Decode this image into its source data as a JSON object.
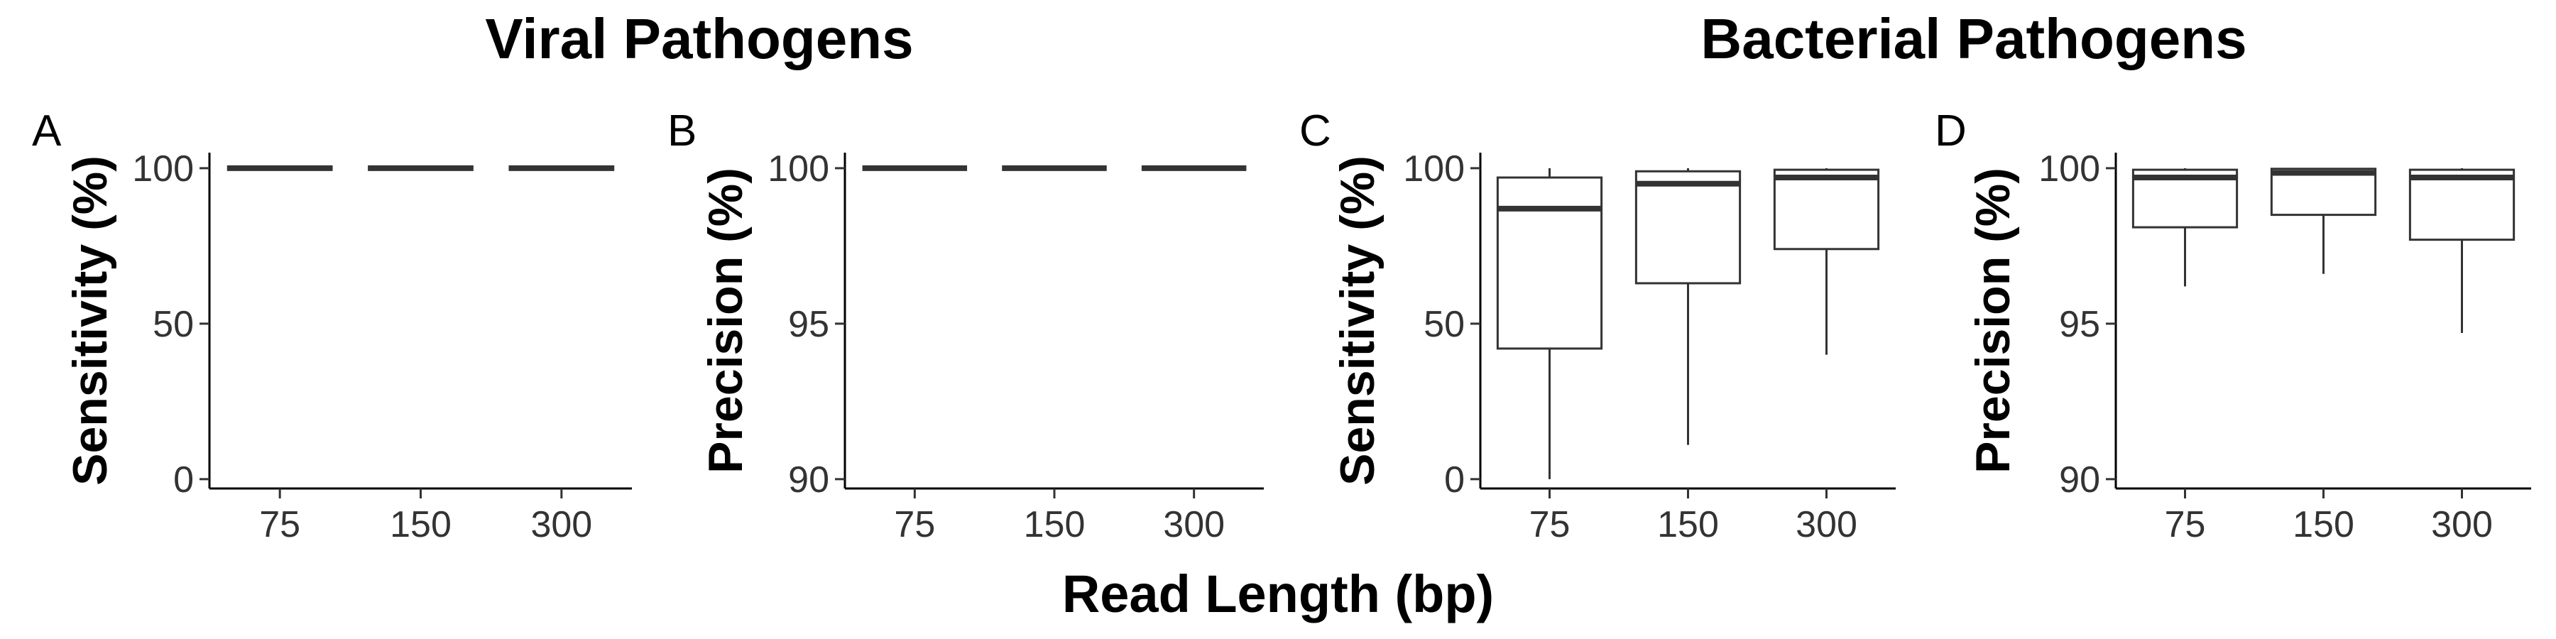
{
  "titles": {
    "viral": "Viral Pathogens",
    "bacterial": "Bacterial Pathogens"
  },
  "xlabel": "Read Length (bp)",
  "chart_data": [
    {
      "type": "boxplot",
      "panel": "A",
      "ylabel": "Sensitivity (%)",
      "categories": [
        "75",
        "150",
        "300"
      ],
      "yticks": [
        0,
        50,
        100
      ],
      "ylim": [
        -3,
        105
      ],
      "boxes": [
        {
          "min": 100,
          "q1": 100,
          "median": 100,
          "q3": 100,
          "max": 100
        },
        {
          "min": 100,
          "q1": 100,
          "median": 100,
          "q3": 100,
          "max": 100
        },
        {
          "min": 100,
          "q1": 100,
          "median": 100,
          "q3": 100,
          "max": 100
        }
      ]
    },
    {
      "type": "boxplot",
      "panel": "B",
      "ylabel": "Precision (%)",
      "categories": [
        "75",
        "150",
        "300"
      ],
      "yticks": [
        90,
        95,
        100
      ],
      "ylim": [
        89.7,
        100.5
      ],
      "boxes": [
        {
          "min": 100,
          "q1": 100,
          "median": 100,
          "q3": 100,
          "max": 100
        },
        {
          "min": 100,
          "q1": 100,
          "median": 100,
          "q3": 100,
          "max": 100
        },
        {
          "min": 100,
          "q1": 100,
          "median": 100,
          "q3": 100,
          "max": 100
        }
      ]
    },
    {
      "type": "boxplot",
      "panel": "C",
      "ylabel": "Sensitivity (%)",
      "categories": [
        "75",
        "150",
        "300"
      ],
      "yticks": [
        0,
        50,
        100
      ],
      "ylim": [
        -3,
        105
      ],
      "boxes": [
        {
          "min": 0,
          "q1": 42,
          "median": 87,
          "q3": 97,
          "max": 100
        },
        {
          "min": 11,
          "q1": 63,
          "median": 95,
          "q3": 99,
          "max": 100
        },
        {
          "min": 40,
          "q1": 74,
          "median": 97,
          "q3": 99.5,
          "max": 100
        }
      ]
    },
    {
      "type": "boxplot",
      "panel": "D",
      "ylabel": "Precision (%)",
      "categories": [
        "75",
        "150",
        "300"
      ],
      "yticks": [
        90,
        95,
        100
      ],
      "ylim": [
        89.7,
        100.5
      ],
      "boxes": [
        {
          "min": 96.2,
          "q1": 98.1,
          "median": 99.7,
          "q3": 99.95,
          "max": 100
        },
        {
          "min": 96.6,
          "q1": 98.5,
          "median": 99.85,
          "q3": 99.98,
          "max": 100
        },
        {
          "min": 94.7,
          "q1": 97.7,
          "median": 99.7,
          "q3": 99.95,
          "max": 100
        }
      ]
    }
  ]
}
